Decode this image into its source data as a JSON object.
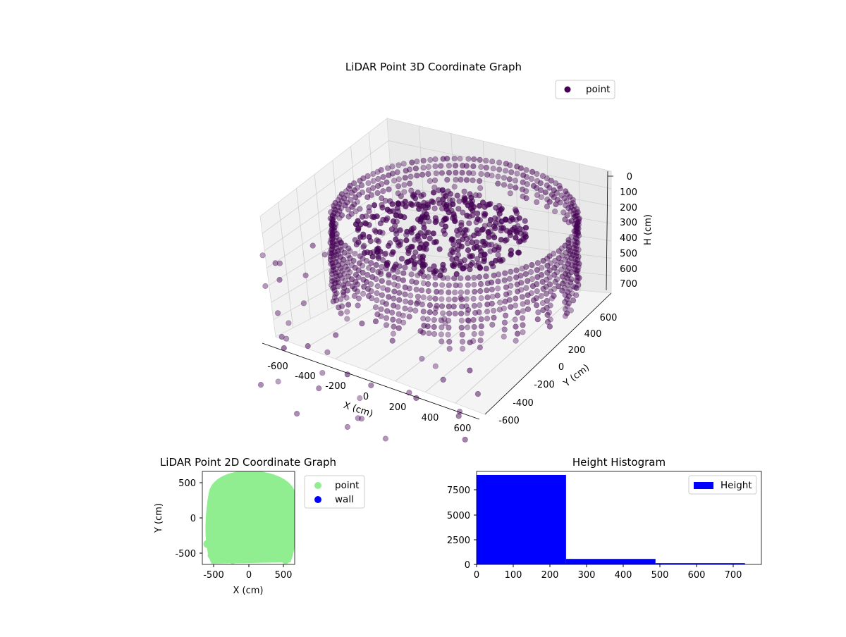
{
  "charts": {
    "scatter3d": {
      "title": "LiDAR Point 3D Coordinate Graph",
      "legend_label": "point",
      "legend_color": "#440154",
      "x_label": "X (cm)",
      "y_label": "Y (cm)",
      "z_label": "H (cm)",
      "x_ticks": [
        "-600",
        "-400",
        "-200",
        "0",
        "200",
        "400",
        "600"
      ],
      "y_ticks": [
        "-600",
        "-400",
        "-200",
        "0",
        "200",
        "400",
        "600"
      ],
      "z_ticks": [
        "0",
        "100",
        "200",
        "300",
        "400",
        "500",
        "600",
        "700"
      ]
    },
    "scatter2d": {
      "title": "LiDAR Point 2D Coordinate Graph",
      "x_label": "X (cm)",
      "y_label": "Y (cm)",
      "x_ticks": [
        "-500",
        "0",
        "500"
      ],
      "y_ticks": [
        "500",
        "0",
        "-500"
      ],
      "legend": [
        {
          "label": "point",
          "color": "#90ee90"
        },
        {
          "label": "wall",
          "color": "#0000ff"
        }
      ]
    },
    "histogram": {
      "title": "Height Histogram",
      "legend_label": "Height",
      "x_ticks": [
        "0",
        "100",
        "200",
        "300",
        "400",
        "500",
        "600",
        "700"
      ],
      "y_ticks": [
        "0",
        "2500",
        "5000",
        "7500"
      ]
    }
  },
  "chart_data": [
    {
      "type": "scatter",
      "title": "LiDAR Point 3D Coordinate Graph",
      "xlabel": "X (cm)",
      "ylabel": "Y (cm)",
      "zlabel": "H (cm)",
      "xlim": [
        -650,
        650
      ],
      "ylim": [
        -650,
        650
      ],
      "zlim": [
        750,
        0
      ],
      "z_axis_inverted": true,
      "series": [
        {
          "name": "point",
          "color": "#440154"
        }
      ],
      "legend_position": "top-right",
      "grid": true
    },
    {
      "type": "scatter",
      "title": "LiDAR Point 2D Coordinate Graph",
      "xlabel": "X (cm)",
      "ylabel": "Y (cm)",
      "xlim": [
        -650,
        650
      ],
      "ylim": [
        -650,
        650
      ],
      "series": [
        {
          "name": "point",
          "color": "#90ee90"
        },
        {
          "name": "wall",
          "color": "#0000ff"
        }
      ],
      "legend_position": "outside-right"
    },
    {
      "type": "bar",
      "title": "Height Histogram",
      "bins": [
        [
          0,
          245
        ],
        [
          245,
          490
        ],
        [
          490,
          735
        ]
      ],
      "values": [
        8950,
        550,
        130
      ],
      "xlim": [
        0,
        780
      ],
      "ylim": [
        0,
        9300
      ],
      "series": [
        {
          "name": "Height",
          "color": "#0000ff"
        }
      ],
      "legend_position": "top-right"
    }
  ]
}
